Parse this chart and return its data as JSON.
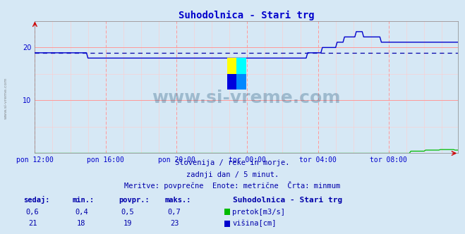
{
  "title": "Suhodolnica - Stari trg",
  "title_color": "#0000cc",
  "bg_color": "#d6e8f5",
  "plot_bg_color": "#d6e8f5",
  "grid_color_major": "#ff9999",
  "grid_color_minor": "#ffcccc",
  "tick_color": "#0000cc",
  "text_color": "#0000aa",
  "ylim": [
    0,
    25
  ],
  "n_points": 288,
  "hora_labels": [
    "pon 12:00",
    "pon 16:00",
    "pon 20:00",
    "tor 00:00",
    "tor 04:00",
    "tor 08:00"
  ],
  "hora_positions": [
    0,
    48,
    96,
    144,
    192,
    240
  ],
  "dashed_line_value": 19,
  "watermark": "www.si-vreme.com",
  "subtitle1": "Slovenija / reke in morje.",
  "subtitle2": "zadnji dan / 5 minut.",
  "subtitle3": "Meritve: povprečne  Enote: metrične  Črta: minmum",
  "legend_title": "Suhodolnica - Stari trg",
  "legend_pretok": "pretok[m3/s]",
  "legend_visina": "višina[cm]",
  "table_headers": [
    "sedaj:",
    "min.:",
    "povpr.:",
    "maks.:"
  ],
  "table_pretok": [
    "0,6",
    "0,4",
    "0,5",
    "0,7"
  ],
  "table_visina": [
    "21",
    "18",
    "19",
    "23"
  ],
  "color_visina": "#0000cc",
  "color_pretok": "#00bb00",
  "color_dashed": "#0000aa",
  "arrow_color": "#cc0000",
  "watermark_color": "#1a5276",
  "spine_color": "#888888"
}
